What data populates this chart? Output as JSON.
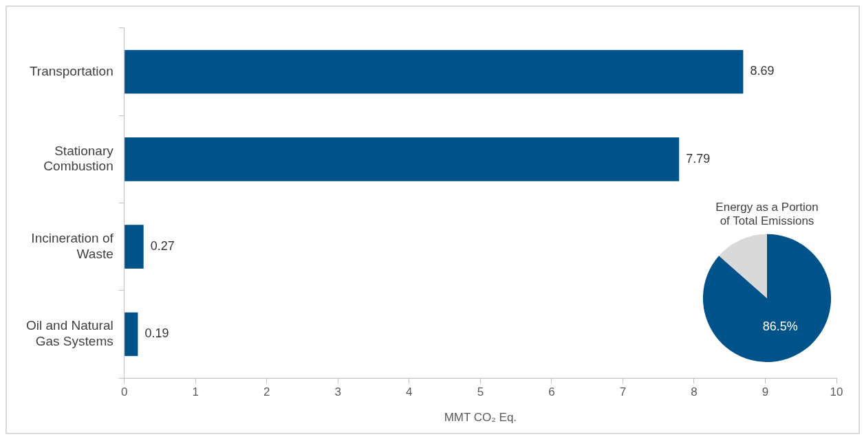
{
  "chart_data": [
    {
      "type": "bar",
      "orientation": "horizontal",
      "xlabel": "MMT CO₂ Eq.",
      "categories": [
        "Transportation",
        "Stationary Combustion",
        "Incineration of Waste",
        "Oil and Natural Gas Systems"
      ],
      "values": [
        8.69,
        7.79,
        0.27,
        0.19
      ],
      "color": "#00538a",
      "xlim": [
        0,
        10
      ],
      "xticks": [
        0,
        1,
        2,
        3,
        4,
        5,
        6,
        7,
        8,
        9,
        10
      ],
      "grid": false,
      "legend": false,
      "data_labels": true
    },
    {
      "type": "pie",
      "title": "Energy as a Portion of Total Emissions",
      "categories": [
        null,
        null
      ],
      "values": [
        86.5,
        13.5
      ],
      "colors": [
        "#00538a",
        "#d9d9d9"
      ],
      "value_labels": [
        "86.5%",
        null
      ],
      "legend": false
    }
  ]
}
